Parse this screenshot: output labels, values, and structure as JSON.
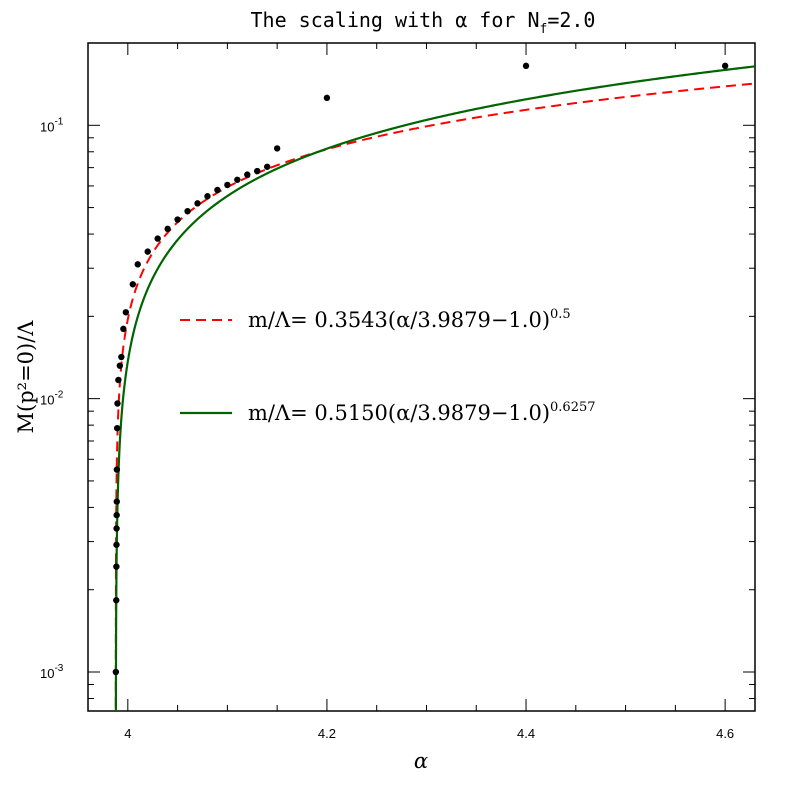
{
  "chart_data": {
    "type": "line",
    "title": {
      "main": "The scaling with α for N",
      "sub": "f",
      "tail": "=2.0"
    },
    "xlabel": "α",
    "ylabel": "M(p²=0)/Λ",
    "xlim": [
      3.96,
      4.63
    ],
    "ylim": [
      0.00072,
      0.2
    ],
    "yscale": "log",
    "x_ticks": [
      {
        "value": 4.0,
        "label": "4"
      },
      {
        "value": 4.2,
        "label": "4.2"
      },
      {
        "value": 4.4,
        "label": "4.4"
      },
      {
        "value": 4.6,
        "label": "4.6"
      }
    ],
    "y_ticks": [
      {
        "value": 0.001,
        "base": "10",
        "exp": "-3"
      },
      {
        "value": 0.01,
        "base": "10",
        "exp": "-2"
      },
      {
        "value": 0.1,
        "base": "10",
        "exp": "-1"
      }
    ],
    "alpha_c": 3.9879,
    "series": [
      {
        "kind": "fit",
        "name": "m/Λ=  0.3543(α/3.9879−1.0)",
        "exponent_label": "0.5",
        "amplitude": 0.3543,
        "exponent": 0.5,
        "color": "#ff0000",
        "dash": "dashed"
      },
      {
        "kind": "fit",
        "name": "m/Λ=  0.5150(α/3.9879−1.0)",
        "exponent_label": "0.6257",
        "amplitude": 0.515,
        "exponent": 0.6257,
        "color": "#006400",
        "dash": "solid"
      },
      {
        "kind": "points",
        "color": "#000000",
        "x": [
          3.988,
          3.9884,
          3.9885,
          3.9886,
          3.9887,
          3.9888,
          3.9889,
          3.989,
          3.9893,
          3.9896,
          3.9905,
          3.992,
          3.9935,
          3.9955,
          3.998,
          4.005,
          4.01,
          4.02,
          4.03,
          4.04,
          4.05,
          4.06,
          4.07,
          4.08,
          4.09,
          4.1,
          4.11,
          4.12,
          4.13,
          4.14,
          4.15,
          4.2,
          4.4,
          4.6
        ],
        "y": [
          0.001,
          0.00183,
          0.00243,
          0.00292,
          0.00335,
          0.00375,
          0.0042,
          0.0055,
          0.0078,
          0.0096,
          0.0117,
          0.0132,
          0.0142,
          0.018,
          0.0207,
          0.0262,
          0.031,
          0.0345,
          0.0385,
          0.0418,
          0.0452,
          0.0485,
          0.0518,
          0.055,
          0.058,
          0.0605,
          0.0632,
          0.066,
          0.068,
          0.0705,
          0.0823,
          0.126,
          0.165,
          0.165
        ]
      }
    ]
  }
}
